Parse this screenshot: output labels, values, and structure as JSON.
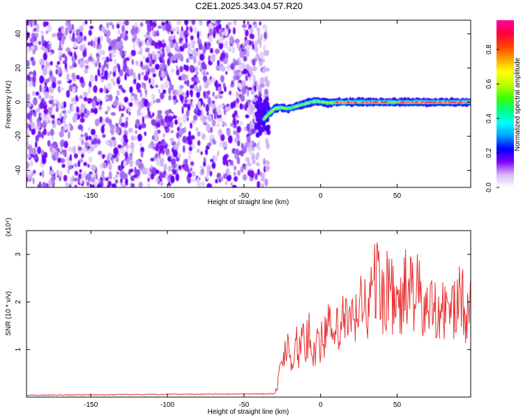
{
  "title": "C2E1.2025.343.04.57.R20",
  "chart_data": [
    {
      "type": "heatmap",
      "xlabel": "Height of straight line (km)",
      "ylabel": "Frequency (Hz)",
      "xlim": [
        -192,
        98
      ],
      "ylim": [
        -50,
        48
      ],
      "xticks": [
        -150,
        -100,
        -50,
        0,
        50
      ],
      "yticks": [
        -40,
        -20,
        0,
        20,
        40
      ],
      "noise_region_x": [
        -192,
        -37
      ],
      "signal_line": {
        "x": [
          -37,
          -34,
          -30,
          -26,
          -22,
          -18,
          -14,
          -10,
          -6,
          -2,
          2,
          6,
          10,
          20,
          30,
          40,
          50,
          60,
          70,
          80,
          90,
          98
        ],
        "y": [
          -10,
          -7,
          -4,
          -3,
          -4,
          -3,
          -2,
          -1,
          0,
          0.5,
          0,
          -0.5,
          0,
          0,
          0,
          0,
          0,
          0,
          0,
          0,
          0,
          0
        ]
      },
      "colorbar": {
        "label": "Normalized spectral amplitude",
        "range": [
          0,
          0.97
        ],
        "ticks": [
          0.0,
          0.2,
          0.4,
          0.6,
          0.8
        ],
        "colors": [
          "#ffffff",
          "#d8b8f8",
          "#8000ff",
          "#0000ff",
          "#00a0ff",
          "#00ffff",
          "#00ff80",
          "#40ff00",
          "#c0ff00",
          "#ffff00",
          "#ffa000",
          "#ff4000",
          "#ff0040",
          "#ff00a0"
        ]
      }
    },
    {
      "type": "line",
      "xlabel": "Height of straight line (km)",
      "ylabel": "SNR (10 * v/v)",
      "scale_label": "(x10⁴)",
      "xlim": [
        -192,
        98
      ],
      "ylim": [
        0,
        3.5
      ],
      "xticks": [
        -150,
        -100,
        -50,
        0,
        50
      ],
      "yticks": [
        1,
        2,
        3
      ],
      "series": [
        {
          "color": "#e83030",
          "x": [
            -192,
            -30,
            -28,
            -26,
            -24,
            -22,
            -20,
            -18,
            -16,
            -14,
            -12,
            -10,
            -8,
            -6,
            -4,
            -2,
            0,
            4,
            8,
            12,
            16,
            20,
            24,
            28,
            32,
            36,
            40,
            44,
            48,
            52,
            56,
            60,
            64,
            68,
            72,
            76,
            80,
            84,
            88,
            92,
            96,
            98
          ],
          "y": [
            0.03,
            0.06,
            0.3,
            0.7,
            0.9,
            1.3,
            1.1,
            0.8,
            1.2,
            1.0,
            1.4,
            0.9,
            1.5,
            1.3,
            1.0,
            1.4,
            1.2,
            1.6,
            1.4,
            1.5,
            1.8,
            1.6,
            1.9,
            2.2,
            2.0,
            2.8,
            2.2,
            2.6,
            2.1,
            2.0,
            2.5,
            2.4,
            2.3,
            1.9,
            2.0,
            2.2,
            1.9,
            2.1,
            2.0,
            2.2,
            1.9,
            2.0
          ]
        }
      ]
    }
  ]
}
